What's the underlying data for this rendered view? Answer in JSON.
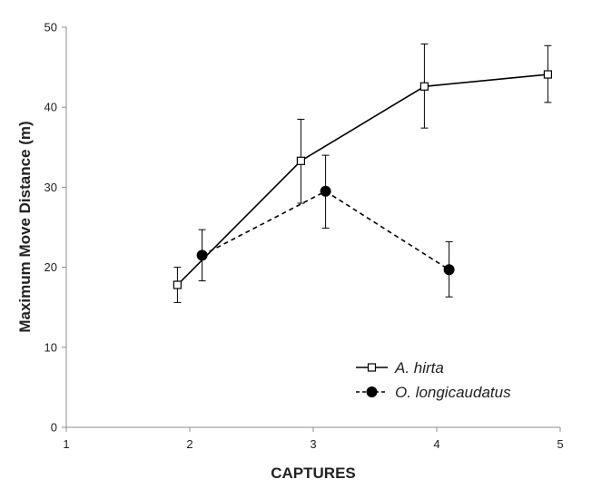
{
  "chart_data": {
    "type": "line",
    "xlabel": "CAPTURES",
    "ylabel": "Maximum Move Distance (m)",
    "xlim": [
      1,
      5
    ],
    "ylim": [
      0,
      50
    ],
    "xticks": [
      "1",
      "2",
      "3",
      "4",
      "5"
    ],
    "yticks": [
      "0",
      "10",
      "20",
      "30",
      "40",
      "50"
    ],
    "grid": false,
    "legend_position": "bottom-right",
    "series": [
      {
        "name": "A. hirta",
        "marker": "open-square",
        "line": "solid",
        "color": "#000000",
        "points": [
          {
            "x": 1.9,
            "y": 17.8,
            "err_low": 15.6,
            "err_high": 20.0
          },
          {
            "x": 2.9,
            "y": 33.3,
            "err_low": 28.0,
            "err_high": 38.5
          },
          {
            "x": 3.9,
            "y": 42.6,
            "err_low": 37.4,
            "err_high": 47.9
          },
          {
            "x": 4.9,
            "y": 44.1,
            "err_low": 40.6,
            "err_high": 47.7
          }
        ]
      },
      {
        "name": "O. longicaudatus",
        "marker": "filled-circle",
        "line": "dashed",
        "color": "#000000",
        "points": [
          {
            "x": 2.1,
            "y": 21.5,
            "err_low": 18.3,
            "err_high": 24.7
          },
          {
            "x": 3.1,
            "y": 29.5,
            "err_low": 24.9,
            "err_high": 34.0
          },
          {
            "x": 4.1,
            "y": 19.7,
            "err_low": 16.3,
            "err_high": 23.2
          }
        ]
      }
    ]
  }
}
